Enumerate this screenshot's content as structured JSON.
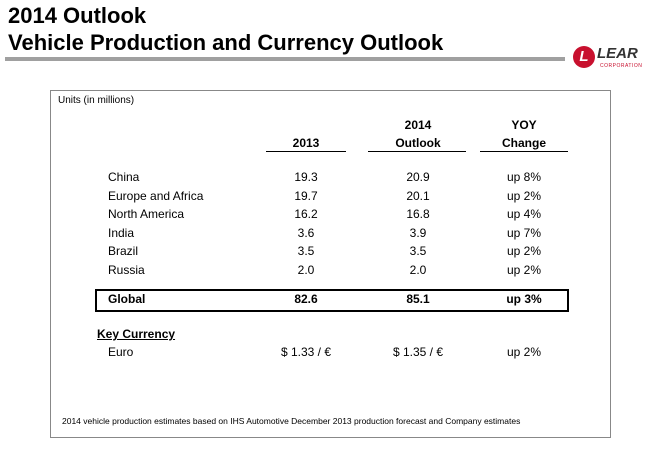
{
  "header": {
    "title_line1": "2014 Outlook",
    "title_line2": "Vehicle Production and Currency Outlook"
  },
  "logo": {
    "name": "LEAR",
    "subtitle": "CORPORATION"
  },
  "units": "Units (in millions)",
  "table": {
    "headers": [
      [
        "2013"
      ],
      [
        "2014",
        "Outlook"
      ],
      [
        "YOY",
        "Change"
      ]
    ],
    "rows": [
      [
        "China",
        "19.3",
        "20.9",
        "up 8%"
      ],
      [
        "Europe and Africa",
        "19.7",
        "20.1",
        "up 2%"
      ],
      [
        "North America",
        "16.2",
        "16.8",
        "up 4%"
      ],
      [
        "India",
        "3.6",
        "3.9",
        "up 7%"
      ],
      [
        "Brazil",
        "3.5",
        "3.5",
        "up 2%"
      ],
      [
        "Russia",
        "2.0",
        "2.0",
        "up 2%"
      ]
    ],
    "total": [
      "Global",
      "82.6",
      "85.1",
      "up 3%"
    ]
  },
  "currency": {
    "heading": "Key Currency",
    "rows": [
      [
        "Euro",
        "$ 1.33 / €",
        "$ 1.35 / €",
        "up 2%"
      ]
    ]
  },
  "footnote": "2014 vehicle production estimates based on IHS Automotive December 2013 production forecast and Company estimates"
}
